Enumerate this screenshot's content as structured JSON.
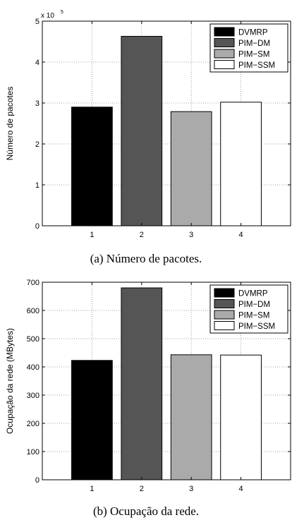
{
  "chart_data": [
    {
      "type": "bar",
      "categories": [
        "1",
        "2",
        "3",
        "4"
      ],
      "values": [
        290000,
        463000,
        279000,
        302000
      ],
      "colors": [
        "#000000",
        "#555555",
        "#aaaaaa",
        "#ffffff"
      ],
      "legend": [
        "DVMRP",
        "PIM−DM",
        "PIM−SM",
        "PIM−SSM"
      ],
      "legend_position": "top-right",
      "ylabel": "Número de pacotes",
      "ylim": [
        0,
        500000
      ],
      "yticks": [
        "0",
        "1",
        "2",
        "3",
        "4",
        "5"
      ],
      "yscale_label": "x 10",
      "yscale_exp": "5",
      "grid": true,
      "caption": "(a) Número de pacotes."
    },
    {
      "type": "bar",
      "categories": [
        "1",
        "2",
        "3",
        "4"
      ],
      "values": [
        423,
        680,
        443,
        442
      ],
      "colors": [
        "#000000",
        "#555555",
        "#aaaaaa",
        "#ffffff"
      ],
      "legend": [
        "DVMRP",
        "PIM−DM",
        "PIM−SM",
        "PIM−SSM"
      ],
      "legend_position": "top-right",
      "ylabel": "Ocupação da rede (MBytes)",
      "ylim": [
        0,
        700
      ],
      "yticks": [
        "0",
        "100",
        "200",
        "300",
        "400",
        "500",
        "600",
        "700"
      ],
      "grid": true,
      "caption": "(b) Ocupação da rede."
    }
  ]
}
